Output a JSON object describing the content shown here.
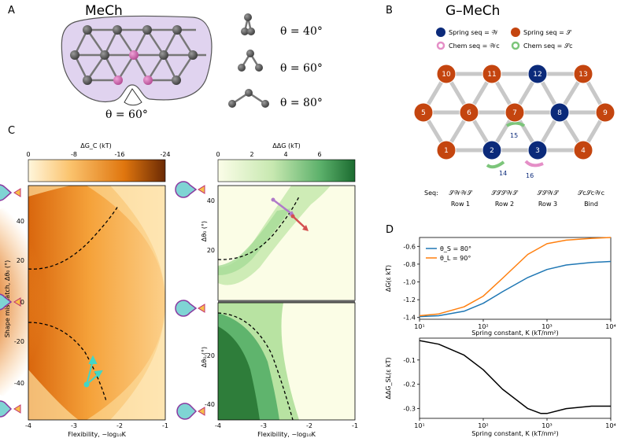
{
  "panel_a": {
    "letter": "A",
    "title": "MeCh",
    "hinge_label": "θ = 60°",
    "angles": [
      "θ = 40°",
      "θ = 60°",
      "θ = 80°"
    ]
  },
  "panel_b": {
    "letter": "B",
    "title": "G–MeCh",
    "legend": {
      "spring_w": "Spring seq = 𝒲",
      "spring_s": "Spring seq = 𝒮",
      "chem_w": "Chem seq = 𝒲c",
      "chem_s": "Chem seq = 𝒮c"
    },
    "node_labels": [
      "10",
      "11",
      "12",
      "13",
      "5",
      "6",
      "7",
      "8",
      "9",
      "1",
      "2",
      "3",
      "4"
    ],
    "bond_labels": [
      "15",
      "14",
      "16"
    ],
    "seq_label": "Seq:",
    "seq_rows": [
      {
        "seq": "𝒮𝒲𝒲𝒮",
        "row": "Row 1"
      },
      {
        "seq": "𝒮𝒮𝒮𝒲𝒮",
        "row": "Row 2"
      },
      {
        "seq": "𝒮𝒮𝒲𝒮",
        "row": "Row 3"
      },
      {
        "seq": "𝒮c𝒮c𝒲c",
        "row": "Bind"
      }
    ],
    "colors": {
      "spring_w": "#0b2a7a",
      "spring_s": "#c4450f",
      "chem_w": "#e58fc7",
      "chem_s": "#7cc57a"
    }
  },
  "panel_c": {
    "letter": "C",
    "left_colorbar_label": "ΔG_C (kT)",
    "left_colorbar_ticks": [
      "0",
      "-8",
      "-16",
      "-24"
    ],
    "right_colorbar_label": "ΔΔG (kT)",
    "right_colorbar_ticks": [
      "0",
      "2",
      "4",
      "6"
    ],
    "left_ylabel": "Shape mismatch, Δθ₀ (°)",
    "left_yticks": [
      "40",
      "20",
      "0",
      "-20",
      "-40"
    ],
    "xticks": [
      "-4",
      "-3",
      "-2",
      "-1"
    ],
    "xlabel": "Flexibility, −log₁₀K",
    "right_top_ylabel": "Δθ₀ (°)",
    "right_top_yticks": [
      "40",
      "20"
    ],
    "right_bottom_ylabel": "Δθ₀ (°)",
    "right_bottom_yticks": [
      "-20",
      "-40"
    ],
    "colors": {
      "orange_dark": "#b94d06",
      "orange_light": "#fdeac0",
      "green_dark": "#2e7d3a",
      "green_light": "#f5fbe0"
    }
  },
  "panel_d": {
    "letter": "D",
    "chart_data": [
      {
        "type": "line",
        "xlabel": "Spring constant, K (kT/nm²)",
        "ylabel": "ΔG(ε kT)",
        "xscale": "log",
        "xlim": [
          10,
          10000
        ],
        "ylim": [
          -1.42,
          -0.5
        ],
        "yticks": [
          "-0.6",
          "-0.8",
          "-1.0",
          "-1.2",
          "-1.4"
        ],
        "xticks": [
          "10¹",
          "10²",
          "10³",
          "10⁴"
        ],
        "legend_position": "top-left",
        "series": [
          {
            "name": "θ_S = 80°",
            "color": "#1f77b4",
            "x": [
              10,
              20,
              50,
              100,
              200,
              500,
              1000,
              2000,
              5000,
              10000
            ],
            "y": [
              -1.39,
              -1.38,
              -1.33,
              -1.24,
              -1.11,
              -0.95,
              -0.86,
              -0.81,
              -0.78,
              -0.77
            ]
          },
          {
            "name": "θ_L = 90°",
            "color": "#ff7f0e",
            "x": [
              10,
              20,
              50,
              100,
              200,
              500,
              1000,
              2000,
              5000,
              10000
            ],
            "y": [
              -1.38,
              -1.36,
              -1.28,
              -1.16,
              -0.96,
              -0.69,
              -0.57,
              -0.53,
              -0.51,
              -0.5
            ]
          }
        ]
      },
      {
        "type": "line",
        "xlabel": "Spring constant, K (kT/nm²)",
        "ylabel": "ΔΔG_SL(ε kT)",
        "xscale": "log",
        "xlim": [
          10,
          10000
        ],
        "ylim": [
          -0.34,
          -0.01
        ],
        "yticks": [
          "-0.1",
          "-0.2",
          "-0.3"
        ],
        "xticks": [
          "10¹",
          "10²",
          "10³",
          "10⁴"
        ],
        "series": [
          {
            "name": "",
            "color": "#000000",
            "x": [
              10,
              20,
              50,
              100,
              200,
              500,
              800,
              1000,
              2000,
              5000,
              10000
            ],
            "y": [
              -0.02,
              -0.035,
              -0.08,
              -0.14,
              -0.22,
              -0.3,
              -0.32,
              -0.32,
              -0.3,
              -0.29,
              -0.29
            ]
          }
        ]
      }
    ]
  }
}
